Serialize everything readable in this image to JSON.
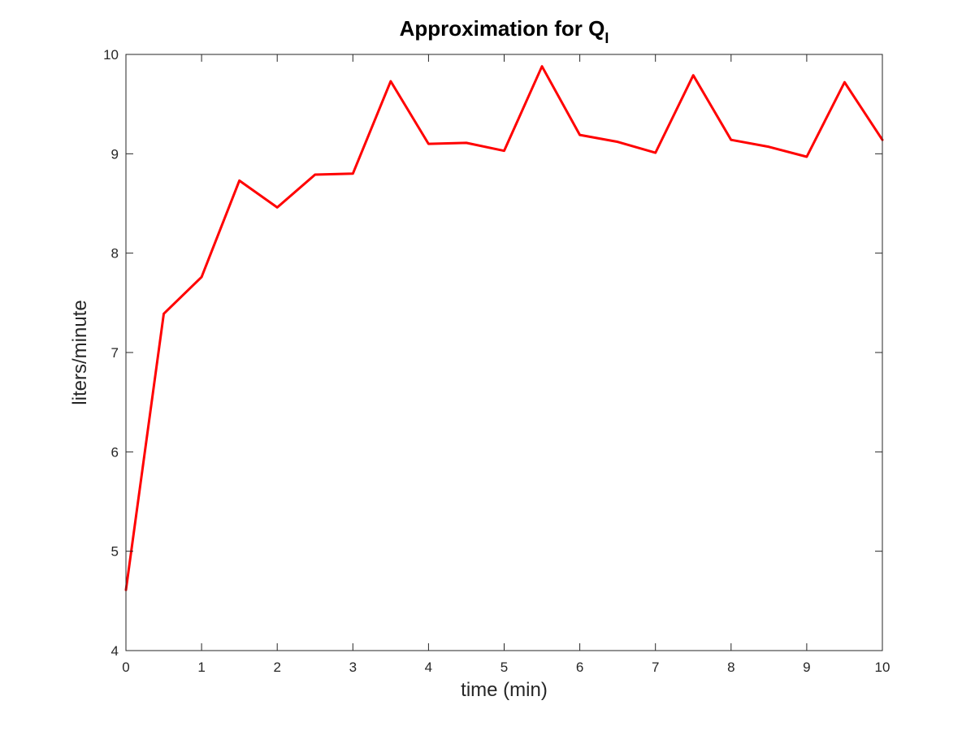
{
  "chart_data": {
    "type": "line",
    "title": {
      "main": "Approximation for Q",
      "subscript": "I"
    },
    "xlabel": "time (min)",
    "ylabel": "liters/minute",
    "xlim": [
      0,
      10
    ],
    "ylim": [
      4,
      10
    ],
    "xticks": [
      0,
      1,
      2,
      3,
      4,
      5,
      6,
      7,
      8,
      9,
      10
    ],
    "yticks": [
      4,
      5,
      6,
      7,
      8,
      9,
      10
    ],
    "grid": false,
    "legend": "none",
    "series": [
      {
        "color": "#ff0000",
        "x": [
          0,
          0.5,
          1,
          1.5,
          2,
          2.5,
          3,
          3.5,
          4,
          4.5,
          5,
          5.5,
          6,
          6.5,
          7,
          7.5,
          8,
          8.5,
          9,
          9.5,
          10
        ],
        "y": [
          4.61,
          7.39,
          7.76,
          8.73,
          8.46,
          8.79,
          8.8,
          9.73,
          9.1,
          9.11,
          9.03,
          9.88,
          9.19,
          9.12,
          9.01,
          9.79,
          9.14,
          9.07,
          8.97,
          9.72,
          9.14
        ]
      }
    ]
  }
}
